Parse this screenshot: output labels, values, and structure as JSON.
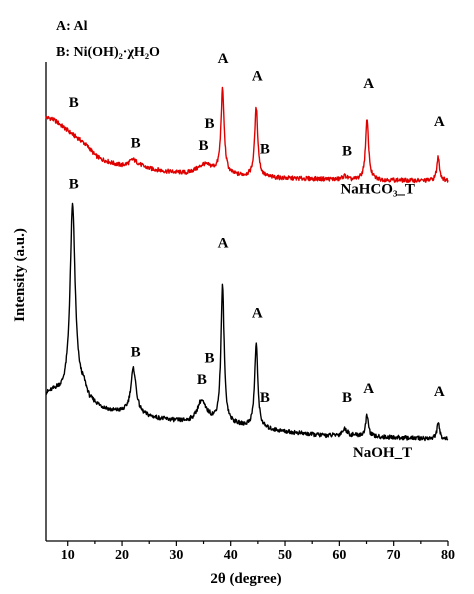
{
  "colors": {
    "NaHCO3_T": "#e00000",
    "NaOH_T": "#000000",
    "axis": "#000000"
  },
  "chart_data": {
    "type": "line",
    "title": "",
    "xlabel": "2θ (degree)",
    "ylabel": "Intensity (a.u.)",
    "xlim": [
      6,
      80
    ],
    "ylim": [
      0,
      100
    ],
    "x_ticks": [
      10,
      20,
      30,
      40,
      50,
      60,
      70,
      80
    ],
    "y_ticks_shown": false,
    "grid": false,
    "legend_text": [
      "A: Al",
      "B: Ni(OH)₂·χH₂O"
    ],
    "series": [
      {
        "name": "NaHCO₃_T",
        "color": "#e00000",
        "baseline_x": [
          6,
          7,
          8,
          9,
          10,
          11,
          12,
          13,
          14,
          15,
          16,
          17,
          18,
          19,
          20,
          21,
          22,
          23,
          24,
          25,
          26,
          28,
          30,
          32,
          34,
          35,
          36,
          37,
          38,
          40,
          42,
          44,
          46,
          48,
          50,
          55,
          60,
          61,
          62,
          65,
          70,
          75,
          78,
          80
        ],
        "baseline_y": [
          88.4,
          88.2,
          87.5,
          86.6,
          85.7,
          84.8,
          84.0,
          83.1,
          82.0,
          80.6,
          79.8,
          79.4,
          79.0,
          78.7,
          78.5,
          78.8,
          79.7,
          78.9,
          78.2,
          77.8,
          77.6,
          77.2,
          77.0,
          76.9,
          77.8,
          78.6,
          78.2,
          77.5,
          76.9,
          76.4,
          76.2,
          76.0,
          75.9,
          75.8,
          75.7,
          75.6,
          75.5,
          76.2,
          75.4,
          75.3,
          75.3,
          75.2,
          75.2,
          75.2
        ],
        "peaks": [
          {
            "x": 38.5,
            "height": 17.5,
            "width": 0.35
          },
          {
            "x": 44.7,
            "height": 14.5,
            "width": 0.35
          },
          {
            "x": 65.1,
            "height": 12.5,
            "width": 0.35
          },
          {
            "x": 78.2,
            "height": 5.0,
            "width": 0.3
          }
        ]
      },
      {
        "name": "NaOH_T",
        "color": "#000000",
        "baseline_x": [
          6,
          7,
          8,
          9,
          9.5,
          13,
          14,
          16,
          18,
          20,
          24,
          26,
          28,
          30,
          32,
          33,
          36,
          37,
          40,
          45,
          50,
          55,
          58,
          60,
          61,
          62,
          65,
          70,
          75,
          78,
          80
        ],
        "baseline_y": [
          30.5,
          30.9,
          31.1,
          30.6,
          30.8,
          31.7,
          29.2,
          27.8,
          27.0,
          26.7,
          26.0,
          25.6,
          25.3,
          25.0,
          24.8,
          24.9,
          25.3,
          24.8,
          24.3,
          23.5,
          22.8,
          22.2,
          22.0,
          22.2,
          23.4,
          22.2,
          21.8,
          21.6,
          21.4,
          21.3,
          21.3
        ],
        "peaks": [
          {
            "x": 10.9,
            "height": 39.0,
            "width": 0.55
          },
          {
            "x": 22.1,
            "height": 9.5,
            "width": 0.6
          },
          {
            "x": 34.6,
            "height": 4.0,
            "width": 0.9
          },
          {
            "x": 38.5,
            "height": 28.5,
            "width": 0.35
          },
          {
            "x": 44.7,
            "height": 17.5,
            "width": 0.35
          },
          {
            "x": 65.1,
            "height": 4.5,
            "width": 0.3
          },
          {
            "x": 78.2,
            "height": 3.2,
            "width": 0.3
          }
        ]
      }
    ],
    "series_labels": [
      {
        "text": "NaHCO₃_T",
        "x": 60.2,
        "y": 72.5
      },
      {
        "text": "NaOH_T",
        "x": 62.5,
        "y": 17.5
      }
    ],
    "annotations": [
      {
        "text": "B",
        "x": 11.1,
        "y": 90.6
      },
      {
        "text": "B",
        "x": 22.5,
        "y": 82.2
      },
      {
        "text": "B",
        "x": 35.0,
        "y": 81.6
      },
      {
        "text": "B",
        "x": 36.1,
        "y": 86.2
      },
      {
        "text": "A",
        "x": 38.6,
        "y": 99.8
      },
      {
        "text": "A",
        "x": 44.9,
        "y": 96.1
      },
      {
        "text": "B",
        "x": 46.3,
        "y": 80.9
      },
      {
        "text": "B",
        "x": 61.4,
        "y": 80.5
      },
      {
        "text": "A",
        "x": 65.4,
        "y": 94.6
      },
      {
        "text": "A",
        "x": 78.4,
        "y": 86.6
      },
      {
        "text": "B",
        "x": 11.1,
        "y": 73.6
      },
      {
        "text": "B",
        "x": 22.5,
        "y": 38.5
      },
      {
        "text": "B",
        "x": 36.1,
        "y": 37.3
      },
      {
        "text": "B",
        "x": 34.7,
        "y": 32.8
      },
      {
        "text": "A",
        "x": 38.6,
        "y": 61.3
      },
      {
        "text": "A",
        "x": 44.9,
        "y": 46.7
      },
      {
        "text": "B",
        "x": 46.3,
        "y": 29.0
      },
      {
        "text": "B",
        "x": 61.4,
        "y": 29.0
      },
      {
        "text": "A",
        "x": 65.4,
        "y": 30.9
      },
      {
        "text": "A",
        "x": 78.4,
        "y": 30.3
      }
    ]
  }
}
